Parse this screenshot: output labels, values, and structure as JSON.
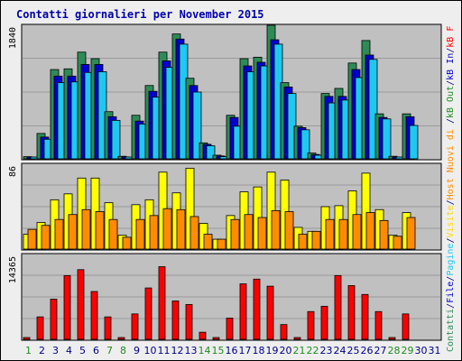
{
  "title": "Contatti giornalieri per November 2015",
  "chart_data": {
    "type": "bar",
    "categories": [
      "1",
      "2",
      "3",
      "4",
      "5",
      "6",
      "7",
      "8",
      "9",
      "10",
      "11",
      "12",
      "13",
      "14",
      "15",
      "16",
      "17",
      "18",
      "19",
      "20",
      "21",
      "22",
      "23",
      "24",
      "25",
      "26",
      "27",
      "28",
      "29",
      "30",
      "31"
    ],
    "weekend_days": [
      1,
      7,
      8,
      14,
      15,
      21,
      22,
      28,
      29
    ],
    "weekend_color": "#228b22",
    "weekday_color": "#000080",
    "panels": [
      {
        "id": "top",
        "max_label": "1840",
        "ymax": 1840,
        "series": [
          {
            "key": "pages",
            "values": [
              30,
              350,
              1230,
              1240,
              1470,
              1380,
              650,
              35,
              600,
              1010,
              1470,
              1720,
              1110,
              220,
              50,
              600,
              1380,
              1400,
              1840,
              1050,
              450,
              80,
              900,
              970,
              1320,
              1630,
              620,
              35,
              620,
              0,
              0
            ],
            "color": "#2e8b57"
          },
          {
            "key": "files",
            "values": [
              20,
              300,
              1140,
              1140,
              1300,
              1300,
              580,
              25,
              520,
              930,
              1350,
              1650,
              1010,
              200,
              40,
              570,
              1280,
              1330,
              1640,
              990,
              430,
              60,
              860,
              860,
              1230,
              1430,
              570,
              25,
              580,
              0,
              0
            ],
            "color": "#0000cc"
          },
          {
            "key": "hits",
            "values": [
              15,
              270,
              1050,
              1060,
              1190,
              1200,
              530,
              20,
              480,
              850,
              1260,
              1580,
              920,
              180,
              30,
              450,
              1200,
              1280,
              1580,
              900,
              400,
              50,
              770,
              810,
              1120,
              1370,
              550,
              20,
              460,
              0,
              0
            ],
            "color": "#1ec8f0"
          }
        ]
      },
      {
        "id": "mid",
        "max_label": "86",
        "ymax": 86,
        "series": [
          {
            "key": "hosts",
            "values": [
              15,
              27,
              50,
              56,
              72,
              72,
              47,
              14,
              45,
              50,
              78,
              57,
              82,
              26,
              10,
              34,
              58,
              63,
              78,
              70,
              22,
              18,
              43,
              44,
              59,
              77,
              40,
              14,
              37,
              0,
              0
            ],
            "color": "#ffff00"
          },
          {
            "key": "visits",
            "values": [
              20,
              24,
              30,
              35,
              40,
              38,
              30,
              12,
              30,
              34,
              41,
              40,
              33,
              15,
              10,
              30,
              35,
              32,
              39,
              38,
              15,
              18,
              30,
              30,
              35,
              37,
              29,
              13,
              32,
              0,
              0
            ],
            "color": "#ff8c00"
          }
        ]
      },
      {
        "id": "bot",
        "max_label": "14365",
        "ymax": 14365,
        "series": [
          {
            "key": "kbytes",
            "values": [
              200,
              3800,
              6800,
              10800,
              11800,
              8100,
              3800,
              200,
              4300,
              8700,
              12300,
              6500,
              5900,
              1200,
              200,
              3600,
              9400,
              10200,
              9000,
              2500,
              200,
              4700,
              5600,
              10800,
              9100,
              7600,
              4700,
              200,
              4300,
              0,
              0
            ],
            "color": "#ff0000"
          }
        ]
      }
    ]
  },
  "legend_right": [
    {
      "text": "Contatti",
      "color": "#2e8b57"
    },
    {
      "text": "/",
      "color": "#000080"
    },
    {
      "text": "File",
      "color": "#0000cc"
    },
    {
      "text": "/",
      "color": "#000080"
    },
    {
      "text": "Pagine",
      "color": "#1ec8f0"
    },
    {
      "text": "/",
      "color": "#000080"
    },
    {
      "text": "Visite",
      "color": "#ffd700"
    },
    {
      "text": "/",
      "color": "#000080"
    },
    {
      "text": "Host",
      "color": "#ff8c00"
    },
    {
      "text": " Nuovi di ",
      "color": "#ff8c00"
    },
    {
      "text": "/",
      "color": "#000080"
    },
    {
      "text": "kB Out",
      "color": "#228b22"
    },
    {
      "text": "/",
      "color": "#000080"
    },
    {
      "text": "kB In",
      "color": "#0000cc"
    },
    {
      "text": "/",
      "color": "#000080"
    },
    {
      "text": "kB F",
      "color": "#ff0000"
    }
  ]
}
